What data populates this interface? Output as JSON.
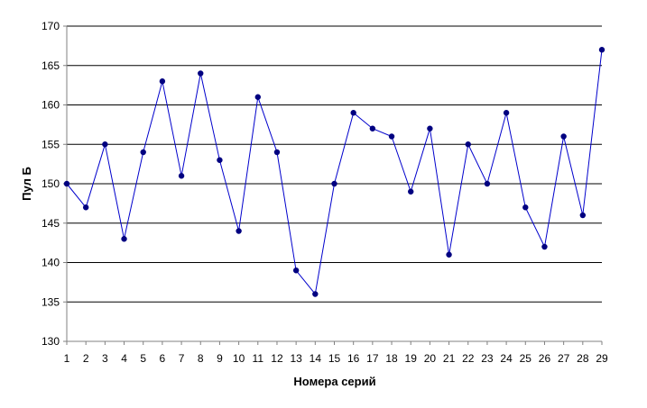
{
  "chart_data": {
    "type": "line",
    "xlabel": "Номера серий",
    "ylabel": "Пул Б",
    "x": [
      1,
      2,
      3,
      4,
      5,
      6,
      7,
      8,
      9,
      10,
      11,
      12,
      13,
      14,
      15,
      16,
      17,
      18,
      19,
      20,
      21,
      22,
      23,
      24,
      25,
      26,
      27,
      28,
      29
    ],
    "series": [
      {
        "values": [
          150,
          147,
          155,
          143,
          154,
          163,
          151,
          164,
          153,
          144,
          161,
          154,
          139,
          136,
          150,
          159,
          157,
          156,
          149,
          157,
          141,
          155,
          150,
          159,
          147,
          142,
          156,
          146,
          167
        ],
        "color": "#0000cc"
      }
    ],
    "ylim": [
      130,
      170
    ],
    "yticks": [
      130,
      135,
      140,
      145,
      150,
      155,
      160,
      165,
      170
    ],
    "grid": true,
    "legend": "none"
  }
}
